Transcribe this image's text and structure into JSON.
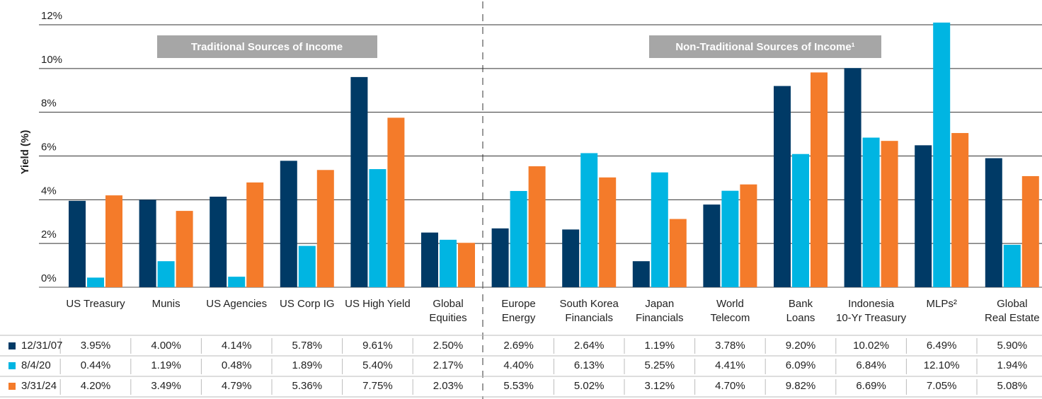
{
  "chart_data": {
    "type": "bar",
    "y_label": "Yield (%)",
    "annotations": [
      "Traditional Sources of Income",
      "Non-Traditional Sources of Income¹"
    ],
    "categories": [
      "US Treasury",
      "Munis",
      "US Agencies",
      "US Corp IG",
      "US High Yield",
      "Global\nEquities",
      "Europe\nEnergy",
      "South Korea\nFinancials",
      "Japan\nFinancials",
      "World\nTelecom",
      "Bank\nLoans",
      "Indonesia\n10-Yr Treasury",
      "MLPs²",
      "Global\nReal Estate"
    ],
    "series": [
      {
        "name": "12/31/07",
        "color": "#003a66",
        "values": [
          3.95,
          4.0,
          4.14,
          5.78,
          9.61,
          2.5,
          2.69,
          2.64,
          1.19,
          3.78,
          9.2,
          10.02,
          6.49,
          5.9
        ],
        "value_labels": [
          "3.95%",
          "4.00%",
          "4.14%",
          "5.78%",
          "9.61%",
          "2.50%",
          "2.69%",
          "2.64%",
          "1.19%",
          "3.78%",
          "9.20%",
          "10.02%",
          "6.49%",
          "5.90%"
        ]
      },
      {
        "name": "8/4/20",
        "color": "#00b5e2",
        "values": [
          0.44,
          1.19,
          0.48,
          1.89,
          5.4,
          2.17,
          4.4,
          6.13,
          5.25,
          4.41,
          6.09,
          6.84,
          12.1,
          1.94
        ],
        "value_labels": [
          "0.44%",
          "1.19%",
          "0.48%",
          "1.89%",
          "5.40%",
          "2.17%",
          "4.40%",
          "6.13%",
          "5.25%",
          "4.41%",
          "6.09%",
          "6.84%",
          "12.10%",
          "1.94%"
        ]
      },
      {
        "name": "3/31/24",
        "color": "#f47b2a",
        "values": [
          4.2,
          3.49,
          4.79,
          5.36,
          7.75,
          2.03,
          5.53,
          5.02,
          3.12,
          4.7,
          9.82,
          6.69,
          7.05,
          5.08
        ],
        "value_labels": [
          "4.20%",
          "3.49%",
          "4.79%",
          "5.36%",
          "7.75%",
          "2.03%",
          "5.53%",
          "5.02%",
          "3.12%",
          "4.70%",
          "9.82%",
          "6.69%",
          "7.05%",
          "5.08%"
        ]
      }
    ],
    "ylim": [
      0,
      12
    ],
    "yticks": [
      {
        "value": 0,
        "label": "0%"
      },
      {
        "value": 2,
        "label": "2%"
      },
      {
        "value": 4,
        "label": "4%"
      },
      {
        "value": 6,
        "label": "6%"
      },
      {
        "value": 8,
        "label": "8%"
      },
      {
        "value": 10,
        "label": "10%"
      },
      {
        "value": 12,
        "label": "12%"
      }
    ],
    "grid": true
  }
}
